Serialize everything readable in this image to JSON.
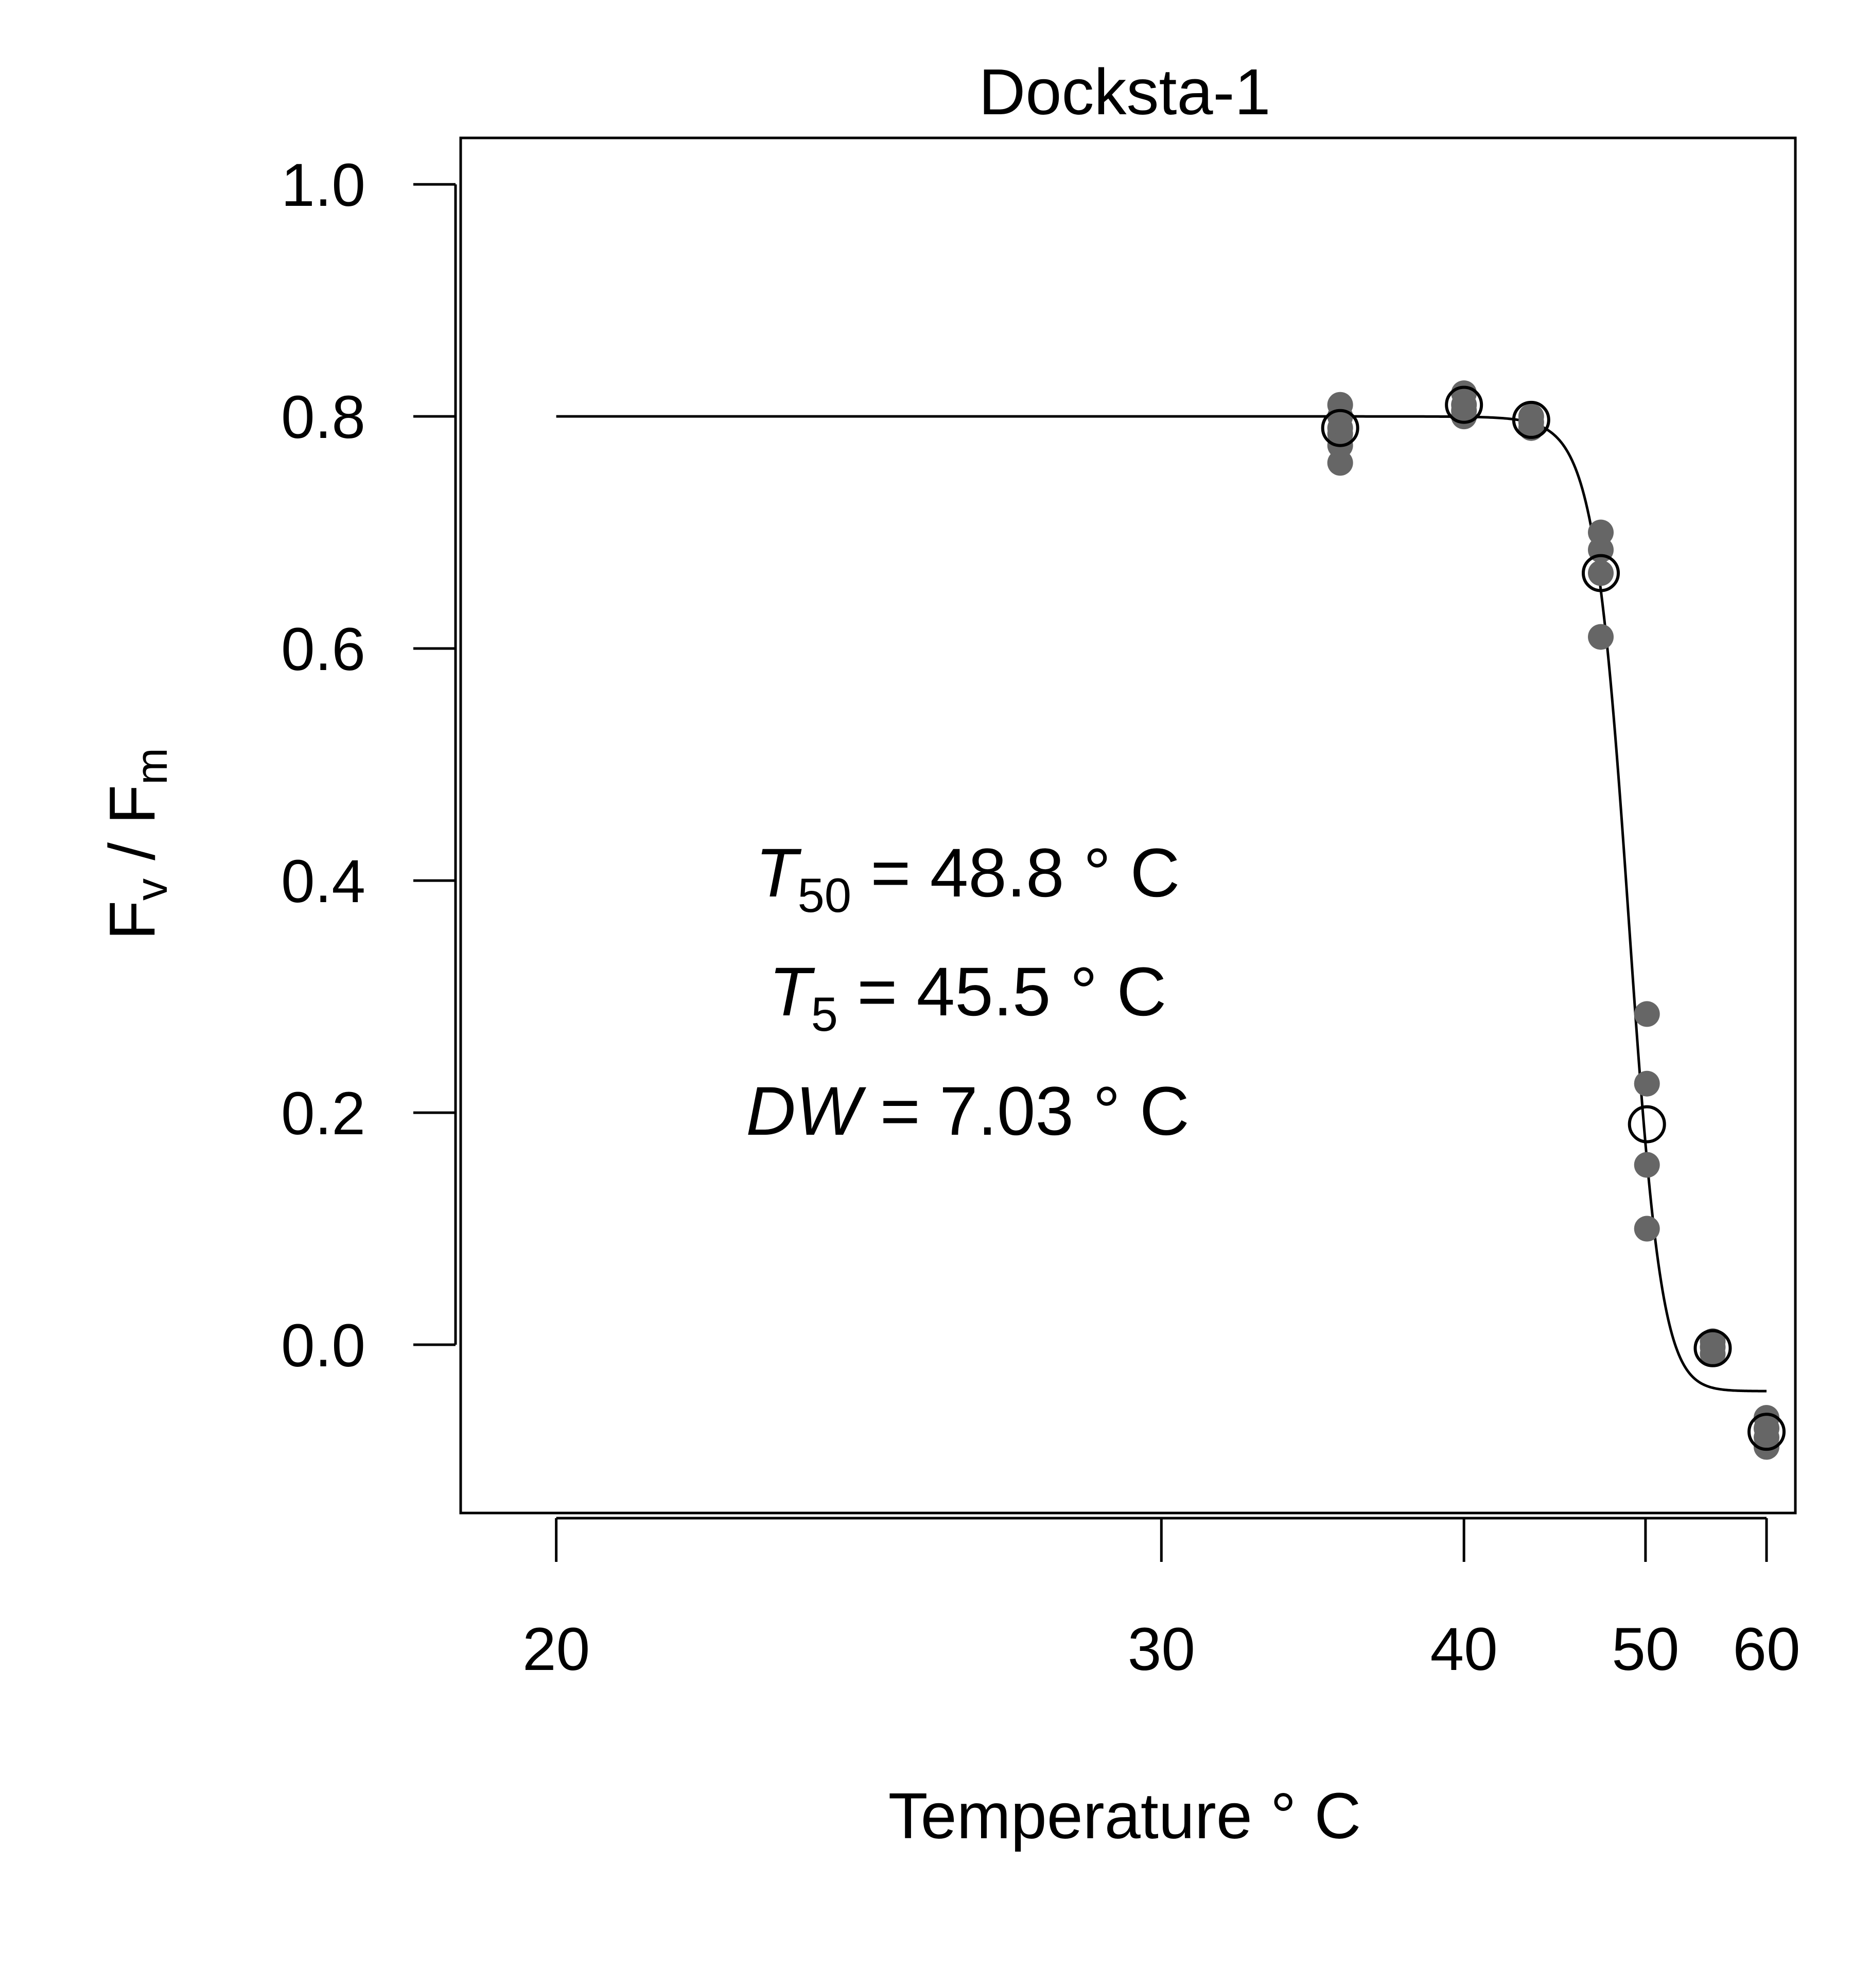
{
  "chart_data": {
    "type": "scatter",
    "title": "Docksta-1",
    "xlabel": "Temperature ° C",
    "ylabel": {
      "main": "F",
      "sub1": "v",
      "sep": " / F",
      "sub2": "m"
    },
    "x_scale": "reciprocal",
    "xlim": [
      19,
      63
    ],
    "ylim": [
      -0.145,
      1.04
    ],
    "x_ticks": [
      20,
      30,
      40,
      50,
      60
    ],
    "y_ticks": [
      0.0,
      0.2,
      0.4,
      0.6,
      0.8,
      1.0
    ],
    "y_tick_labels": [
      "0.0",
      "0.2",
      "0.4",
      "0.6",
      "0.8",
      "1.0"
    ],
    "grid": false,
    "colors": {
      "points": "#666666",
      "curve": "#000000",
      "means": "#000000"
    },
    "series": [
      {
        "marker": "filled-circle",
        "points": [
          [
            35.2,
            0.81
          ],
          [
            35.2,
            0.8
          ],
          [
            35.2,
            0.79
          ],
          [
            35.2,
            0.785
          ],
          [
            35.2,
            0.775
          ],
          [
            35.2,
            0.76
          ],
          [
            40.0,
            0.82
          ],
          [
            40.0,
            0.81
          ],
          [
            40.0,
            0.805
          ],
          [
            40.0,
            0.8
          ],
          [
            43.2,
            0.8
          ],
          [
            43.2,
            0.795
          ],
          [
            43.2,
            0.79
          ],
          [
            47.1,
            0.7
          ],
          [
            47.1,
            0.685
          ],
          [
            47.1,
            0.665
          ],
          [
            47.1,
            0.61
          ],
          [
            50.1,
            0.285
          ],
          [
            50.1,
            0.225
          ],
          [
            50.1,
            0.155
          ],
          [
            50.1,
            0.1
          ],
          [
            55.1,
            0.003
          ],
          [
            55.1,
            -0.002
          ],
          [
            55.1,
            -0.008
          ],
          [
            60.0,
            -0.063
          ],
          [
            60.0,
            -0.072
          ],
          [
            60.0,
            -0.08
          ],
          [
            60.0,
            -0.088
          ]
        ]
      },
      {
        "marker": "open-circle",
        "points": [
          [
            35.2,
            0.79
          ],
          [
            40.0,
            0.81
          ],
          [
            43.2,
            0.797
          ],
          [
            47.1,
            0.665
          ],
          [
            50.1,
            0.19
          ],
          [
            55.1,
            -0.003
          ],
          [
            60.0,
            -0.075
          ]
        ]
      },
      {
        "type": "line",
        "function": "logistic",
        "upper": 0.8,
        "lower": -0.04,
        "T50": 48.8,
        "steepness": 0.9,
        "x_range": [
          20,
          60
        ]
      }
    ],
    "annotations": [
      {
        "symbol": "T",
        "sub": "50",
        "value": "= 48.8 ° C"
      },
      {
        "symbol": "T",
        "sub": "5",
        "value": "= 45.5 ° C"
      },
      {
        "symbol": "DW",
        "sub": "",
        "value": "= 7.03 ° C"
      }
    ]
  }
}
